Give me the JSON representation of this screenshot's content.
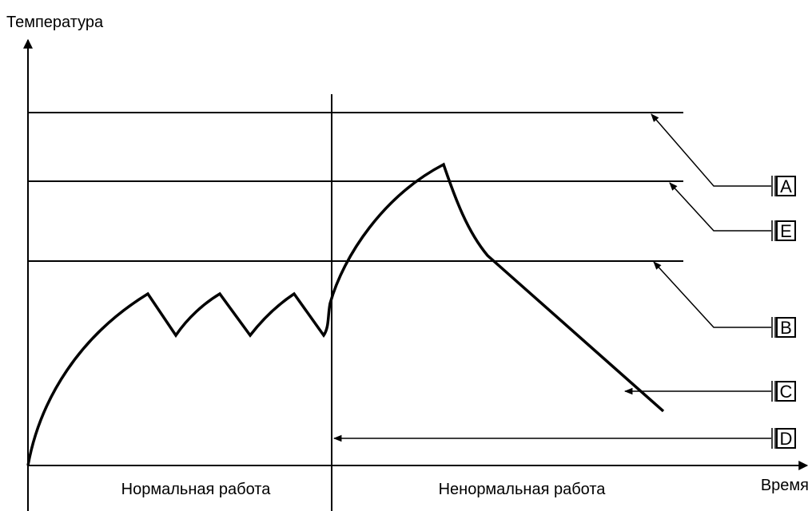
{
  "axes": {
    "y_label": "Температура",
    "x_label": "Время"
  },
  "regions": [
    "Нормальная работа",
    "Ненормальная работа"
  ],
  "callouts": [
    "A",
    "E",
    "B",
    "C",
    "D"
  ]
}
